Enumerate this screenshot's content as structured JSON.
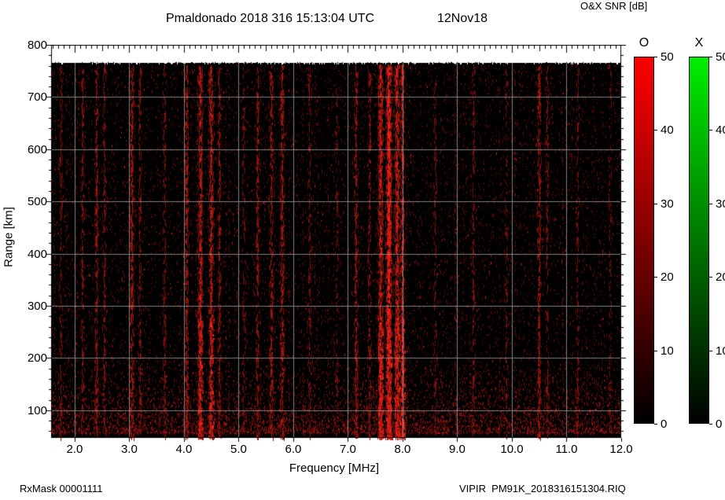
{
  "header": {
    "title_station": "Pmaldonado 2018 316 15:13:04 UTC",
    "title_date": "12Nov18",
    "snr_label": "O&X SNR [dB]"
  },
  "footer": {
    "rx_mask": "RxMask 00001111",
    "filename": "VIPIR  PM91K_2018316151304.RIQ"
  },
  "chart_data": {
    "type": "heatmap",
    "title": "Pmaldonado 2018 316 15:13:04 UTC  12Nov18",
    "xlabel": "Frequency [MHz]",
    "ylabel": "Range [km]",
    "colorbar_title": "O&X SNR [dB]",
    "xlim": [
      1.57,
      12.0
    ],
    "ylim": [
      47,
      800
    ],
    "x_tick_values": [
      2,
      3,
      4,
      5,
      6,
      7,
      8,
      9,
      10,
      11,
      12
    ],
    "x_tick_labels": [
      "2.0",
      "3.0",
      "4.0",
      "5.0",
      "6.0",
      "7.0",
      "8.0",
      "9.0",
      "10.0",
      "11.0",
      "12.0"
    ],
    "y_tick_values": [
      100,
      200,
      300,
      400,
      500,
      600,
      700,
      800
    ],
    "y_tick_labels": [
      "100",
      "200",
      "300",
      "400",
      "500",
      "600",
      "700",
      "800"
    ],
    "grid": true,
    "grid_color": "#a0a0a0",
    "background_color": "#000000",
    "no_data_above_km": 765,
    "signal_description": "Diffuse low-level O-mode SNR speckle (dark red) across all frequencies with vertical RFI streaks; strongest interference cluster near 7.5-8.0 MHz; denser noise patches below ~200 km.",
    "rfi_bands": [
      {
        "freq": 1.75,
        "snr": 12,
        "width": 0.02
      },
      {
        "freq": 2.15,
        "snr": 14,
        "width": 0.02
      },
      {
        "freq": 2.4,
        "snr": 19,
        "width": 0.02
      },
      {
        "freq": 2.55,
        "snr": 13,
        "width": 0.02
      },
      {
        "freq": 3.05,
        "snr": 21,
        "width": 0.025
      },
      {
        "freq": 3.2,
        "snr": 15,
        "width": 0.02
      },
      {
        "freq": 3.65,
        "snr": 13,
        "width": 0.02
      },
      {
        "freq": 4.05,
        "snr": 23,
        "width": 0.025
      },
      {
        "freq": 4.3,
        "snr": 27,
        "width": 0.03
      },
      {
        "freq": 4.5,
        "snr": 25,
        "width": 0.03
      },
      {
        "freq": 4.65,
        "snr": 15,
        "width": 0.02
      },
      {
        "freq": 5.1,
        "snr": 11,
        "width": 0.02
      },
      {
        "freq": 5.35,
        "snr": 17,
        "width": 0.02
      },
      {
        "freq": 5.6,
        "snr": 19,
        "width": 0.025
      },
      {
        "freq": 5.8,
        "snr": 21,
        "width": 0.025
      },
      {
        "freq": 6.3,
        "snr": 13,
        "width": 0.02
      },
      {
        "freq": 6.8,
        "snr": 10,
        "width": 0.02
      },
      {
        "freq": 7.15,
        "snr": 19,
        "width": 0.025
      },
      {
        "freq": 7.4,
        "snr": 16,
        "width": 0.02
      },
      {
        "freq": 7.6,
        "snr": 30,
        "width": 0.03
      },
      {
        "freq": 7.75,
        "snr": 38,
        "width": 0.035
      },
      {
        "freq": 7.9,
        "snr": 29,
        "width": 0.03
      },
      {
        "freq": 8.0,
        "snr": 25,
        "width": 0.025
      },
      {
        "freq": 8.6,
        "snr": 10,
        "width": 0.02
      },
      {
        "freq": 9.3,
        "snr": 13,
        "width": 0.02
      },
      {
        "freq": 9.9,
        "snr": 10,
        "width": 0.02
      },
      {
        "freq": 10.5,
        "snr": 19,
        "width": 0.025
      },
      {
        "freq": 10.65,
        "snr": 13,
        "width": 0.02
      },
      {
        "freq": 11.2,
        "snr": 12,
        "width": 0.02
      },
      {
        "freq": 11.8,
        "snr": 9,
        "width": 0.02
      }
    ],
    "colorbars": [
      {
        "label": "O",
        "range": [
          0,
          50
        ],
        "tick_values": [
          0,
          10,
          20,
          30,
          40,
          50
        ],
        "tick_labels": [
          "0",
          "10",
          "20",
          "30",
          "40",
          "50"
        ],
        "color_low": "#000000",
        "color_high": "#ff0000"
      },
      {
        "label": "X",
        "range": [
          0,
          50
        ],
        "tick_values": [
          0,
          10,
          20,
          30,
          40,
          50
        ],
        "tick_labels": [
          "0",
          "10",
          "20",
          "30",
          "40",
          "50"
        ],
        "color_low": "#000000",
        "color_high": "#00ee00"
      }
    ]
  }
}
